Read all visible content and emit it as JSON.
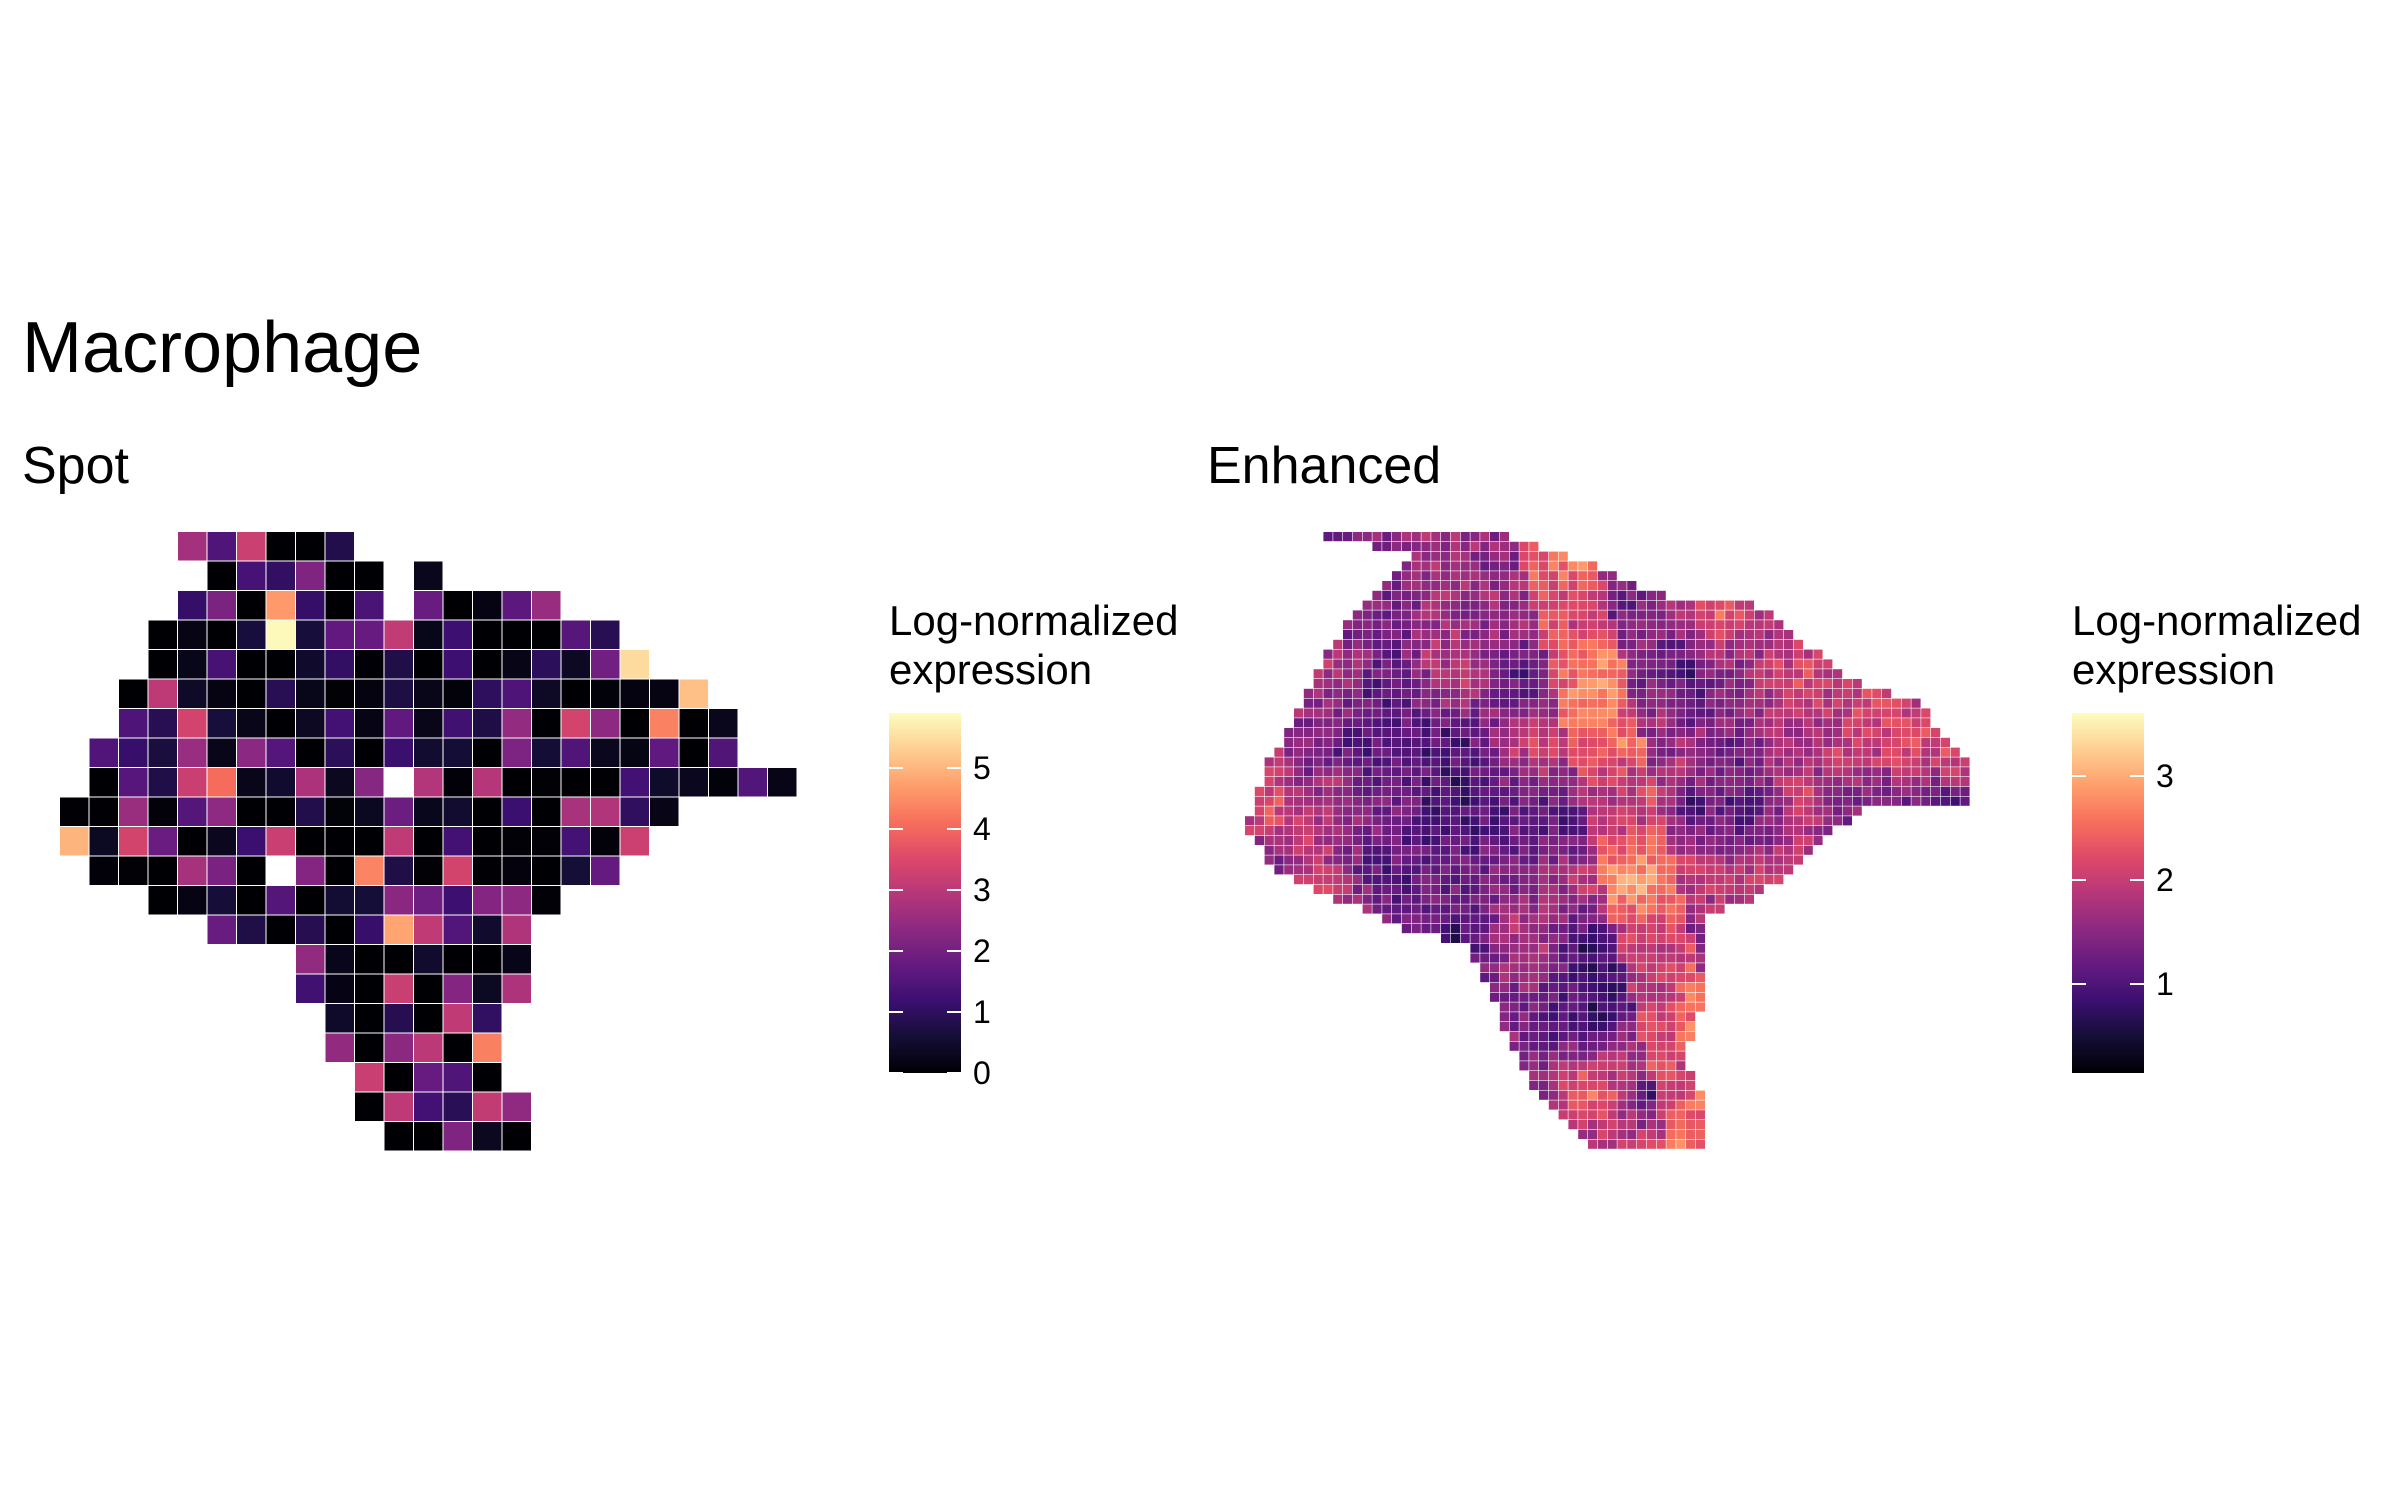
{
  "title": "Macrophage",
  "chart_data": [
    {
      "type": "heatmap",
      "title": "Spot",
      "legend": {
        "title_lines": [
          "Log-normalized",
          "expression"
        ],
        "ticks": [
          0,
          1,
          2,
          3,
          4,
          5
        ],
        "range": [
          0,
          5.9
        ],
        "placement": "right"
      },
      "colormap": "magma",
      "grid": false
    },
    {
      "type": "heatmap",
      "title": "Enhanced",
      "legend": {
        "title_lines": [
          "Log-normalized",
          "expression"
        ],
        "ticks": [
          1,
          2,
          3
        ],
        "range": [
          0.15,
          3.6
        ],
        "placement": "right"
      },
      "colormap": "magma",
      "grid": false
    }
  ]
}
